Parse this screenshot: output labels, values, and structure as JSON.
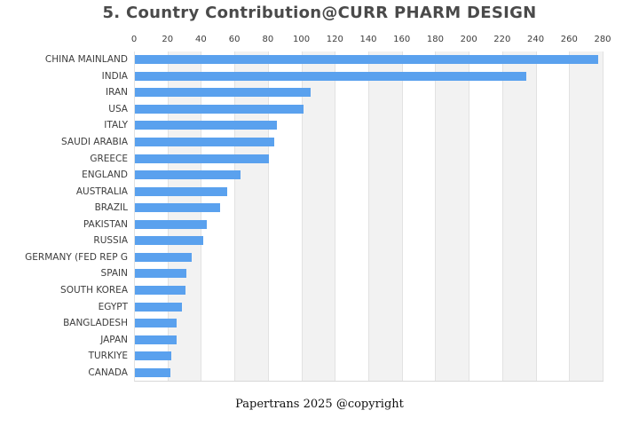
{
  "title": "5. Country Contribution@CURR PHARM DESIGN",
  "footer": "Papertrans 2025 @copyright",
  "colors": {
    "bar": "#5aa1ee",
    "stripe_even": "#ffffff",
    "stripe_odd": "#f2f2f2",
    "gridline": "#e2e2e2",
    "title_text": "#4a4a4a",
    "axis_text": "#3d3d3d"
  },
  "chart_data": {
    "type": "bar",
    "orientation": "horizontal",
    "title": "5. Country Contribution@CURR PHARM DESIGN",
    "categories": [
      "CHINA MAINLAND",
      "INDIA",
      "IRAN",
      "USA",
      "ITALY",
      "SAUDI ARABIA",
      "GREECE",
      "ENGLAND",
      "AUSTRALIA",
      "BRAZIL",
      "PAKISTAN",
      "RUSSIA",
      "GERMANY (FED REP G",
      "SPAIN",
      "SOUTH KOREA",
      "EGYPT",
      "BANGLADESH",
      "JAPAN",
      "TURKIYE",
      "CANADA"
    ],
    "values": [
      277,
      234,
      105,
      101,
      85,
      83,
      80,
      63,
      55,
      51,
      43,
      41,
      34,
      31,
      30,
      28,
      25,
      25,
      22,
      21
    ],
    "xlabel": "",
    "ylabel": "",
    "xlim": [
      0,
      280
    ],
    "xticks": [
      0,
      20,
      40,
      60,
      80,
      100,
      120,
      140,
      160,
      180,
      200,
      220,
      240,
      260,
      280
    ],
    "tick_position": "top",
    "grid": "vertical-stripes-alternating",
    "legend": false,
    "annotation": "Papertrans 2025 @copyright"
  }
}
